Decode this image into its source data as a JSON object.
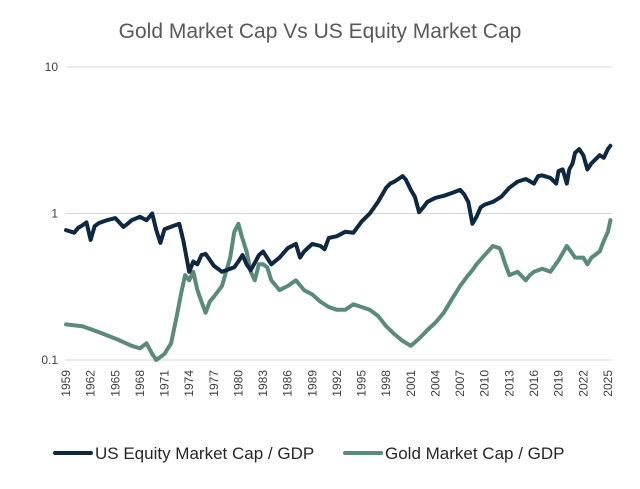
{
  "chart_data": {
    "type": "line",
    "title": "Gold Market Cap Vs US Equity Market Cap",
    "xlabel": "",
    "ylabel": "",
    "y_scale": "log",
    "ylim": [
      0.1,
      10
    ],
    "y_ticks": [
      {
        "value": 10,
        "label": "10"
      },
      {
        "value": 1,
        "label": "1"
      },
      {
        "value": 0.1,
        "label": "0.1"
      }
    ],
    "xlim": [
      1959,
      2025.5
    ],
    "x_ticks": [
      1959,
      1962,
      1965,
      1968,
      1971,
      1974,
      1977,
      1980,
      1983,
      1986,
      1989,
      1992,
      1995,
      1998,
      2001,
      2004,
      2007,
      2010,
      2013,
      2016,
      2019,
      2022,
      2025
    ],
    "grid": "horizontal",
    "legend": "bottom",
    "series": [
      {
        "name": "US Equity Market Cap / GDP",
        "color": "#0e2841",
        "x": [
          1959,
          1960,
          1960.5,
          1961,
          1961.5,
          1962,
          1962.5,
          1963,
          1963.5,
          1964,
          1965,
          1966,
          1966.5,
          1967,
          1968,
          1968.8,
          1969.5,
          1970,
          1970.5,
          1971,
          1972,
          1972.8,
          1973.3,
          1974,
          1974.5,
          1975,
          1975.5,
          1976,
          1977,
          1977.5,
          1978,
          1979,
          1979.5,
          1980,
          1980.5,
          1981,
          1981.5,
          1982,
          1982.5,
          1983,
          1984,
          1985,
          1986,
          1987,
          1987.5,
          1988,
          1989,
          1990,
          1990.5,
          1991,
          1992,
          1993,
          1994,
          1995,
          1996,
          1997,
          1998,
          1998.5,
          1999,
          2000,
          2000.4,
          2001,
          2001.5,
          2002,
          2002.5,
          2003,
          2004,
          2005,
          2006,
          2007,
          2007.5,
          2008,
          2008.5,
          2009,
          2009.5,
          2010,
          2011,
          2012,
          2013,
          2014,
          2015,
          2016,
          2016.5,
          2017,
          2018,
          2018.7,
          2019,
          2019.5,
          2020,
          2020.3,
          2020.7,
          2021,
          2021.5,
          2022,
          2022.5,
          2023,
          2024,
          2024.5,
          2025,
          2025.3
        ],
        "y": [
          0.77,
          0.74,
          0.8,
          0.83,
          0.87,
          0.66,
          0.82,
          0.86,
          0.88,
          0.9,
          0.93,
          0.81,
          0.85,
          0.9,
          0.95,
          0.9,
          1.0,
          0.77,
          0.63,
          0.78,
          0.82,
          0.85,
          0.65,
          0.4,
          0.47,
          0.45,
          0.52,
          0.53,
          0.44,
          0.42,
          0.4,
          0.42,
          0.43,
          0.47,
          0.52,
          0.45,
          0.41,
          0.46,
          0.52,
          0.55,
          0.45,
          0.5,
          0.58,
          0.62,
          0.5,
          0.55,
          0.62,
          0.6,
          0.57,
          0.68,
          0.7,
          0.75,
          0.74,
          0.88,
          1.0,
          1.2,
          1.5,
          1.6,
          1.65,
          1.8,
          1.7,
          1.45,
          1.3,
          1.02,
          1.1,
          1.2,
          1.28,
          1.32,
          1.38,
          1.45,
          1.35,
          1.2,
          0.85,
          0.95,
          1.1,
          1.15,
          1.2,
          1.3,
          1.5,
          1.65,
          1.72,
          1.6,
          1.8,
          1.82,
          1.75,
          1.6,
          1.95,
          2.0,
          1.6,
          2.0,
          2.2,
          2.6,
          2.75,
          2.5,
          2.0,
          2.2,
          2.5,
          2.4,
          2.75,
          2.9
        ]
      },
      {
        "name": "Gold Market Cap / GDP",
        "color": "#5a8a7c",
        "x": [
          1959,
          1961,
          1963,
          1965,
          1967,
          1968,
          1968.8,
          1969.5,
          1970,
          1971,
          1971.8,
          1972.5,
          1973,
          1973.5,
          1974,
          1974.5,
          1975,
          1975.5,
          1976,
          1976.5,
          1977,
          1978,
          1979,
          1979.5,
          1980,
          1980.4,
          1981,
          1981.5,
          1982,
          1982.5,
          1983,
          1983.5,
          1984,
          1985,
          1986,
          1987,
          1988,
          1989,
          1990,
          1991,
          1992,
          1993,
          1994,
          1995,
          1996,
          1997,
          1998,
          1999,
          2000,
          2001,
          2002,
          2003,
          2004,
          2005,
          2006,
          2007,
          2008,
          2008.5,
          2009,
          2010,
          2011,
          2011.8,
          2012,
          2012.5,
          2013,
          2014,
          2015,
          2015.5,
          2016,
          2017,
          2018,
          2019,
          2020,
          2020.5,
          2021,
          2022,
          2022.5,
          2023,
          2024,
          2024.5,
          2025,
          2025.3
        ],
        "y": [
          0.175,
          0.17,
          0.155,
          0.14,
          0.125,
          0.12,
          0.13,
          0.11,
          0.1,
          0.11,
          0.13,
          0.2,
          0.28,
          0.38,
          0.35,
          0.4,
          0.3,
          0.25,
          0.21,
          0.25,
          0.27,
          0.32,
          0.5,
          0.75,
          0.85,
          0.7,
          0.55,
          0.4,
          0.35,
          0.45,
          0.45,
          0.43,
          0.35,
          0.3,
          0.32,
          0.35,
          0.3,
          0.28,
          0.25,
          0.23,
          0.22,
          0.22,
          0.24,
          0.23,
          0.22,
          0.2,
          0.17,
          0.15,
          0.135,
          0.125,
          0.14,
          0.16,
          0.18,
          0.21,
          0.26,
          0.32,
          0.38,
          0.41,
          0.45,
          0.52,
          0.6,
          0.58,
          0.55,
          0.45,
          0.38,
          0.4,
          0.35,
          0.38,
          0.4,
          0.42,
          0.4,
          0.48,
          0.6,
          0.55,
          0.5,
          0.5,
          0.45,
          0.5,
          0.55,
          0.65,
          0.75,
          0.9
        ]
      }
    ]
  }
}
